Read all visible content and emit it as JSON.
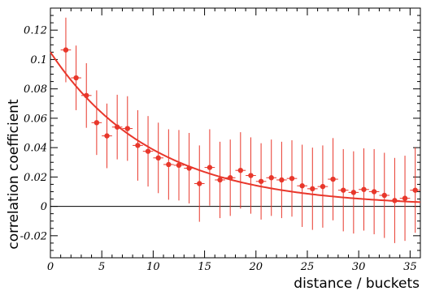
{
  "chart_data": {
    "type": "scatter",
    "xlabel": "distance / buckets",
    "ylabel": "correlation coefficient",
    "xlim": [
      0,
      36
    ],
    "ylim": [
      -0.035,
      0.135
    ],
    "x_ticks": [
      0,
      5,
      10,
      15,
      20,
      25,
      30,
      35
    ],
    "x_tick_labels": [
      "0",
      "5",
      "10",
      "15",
      "20",
      "25",
      "30",
      "35"
    ],
    "y_ticks": [
      -0.02,
      0,
      0.02,
      0.04,
      0.06,
      0.08,
      0.1,
      0.12
    ],
    "y_tick_labels": [
      "-0.02",
      "0",
      "0.02",
      "0.04",
      "0.06",
      "0.08",
      "0.1",
      "0.12"
    ],
    "grid": false,
    "reference_line_y": 0,
    "marker_color": "#e8372b",
    "series": [
      {
        "points": [
          {
            "x": 1.5,
            "y": 0.1065,
            "err": 0.022
          },
          {
            "x": 2.5,
            "y": 0.0875,
            "err": 0.022
          },
          {
            "x": 3.5,
            "y": 0.0755,
            "err": 0.022
          },
          {
            "x": 4.5,
            "y": 0.057,
            "err": 0.022
          },
          {
            "x": 5.5,
            "y": 0.048,
            "err": 0.022
          },
          {
            "x": 6.5,
            "y": 0.054,
            "err": 0.022
          },
          {
            "x": 7.5,
            "y": 0.053,
            "err": 0.022
          },
          {
            "x": 8.5,
            "y": 0.0415,
            "err": 0.024
          },
          {
            "x": 9.5,
            "y": 0.0375,
            "err": 0.024
          },
          {
            "x": 10.5,
            "y": 0.033,
            "err": 0.024
          },
          {
            "x": 11.5,
            "y": 0.0285,
            "err": 0.024
          },
          {
            "x": 12.5,
            "y": 0.028,
            "err": 0.024
          },
          {
            "x": 13.5,
            "y": 0.026,
            "err": 0.024
          },
          {
            "x": 14.5,
            "y": 0.0155,
            "err": 0.026
          },
          {
            "x": 15.5,
            "y": 0.0265,
            "err": 0.026
          },
          {
            "x": 16.5,
            "y": 0.018,
            "err": 0.026
          },
          {
            "x": 17.5,
            "y": 0.0195,
            "err": 0.026
          },
          {
            "x": 18.5,
            "y": 0.0245,
            "err": 0.026
          },
          {
            "x": 19.5,
            "y": 0.021,
            "err": 0.026
          },
          {
            "x": 20.5,
            "y": 0.017,
            "err": 0.026
          },
          {
            "x": 21.5,
            "y": 0.0195,
            "err": 0.026
          },
          {
            "x": 22.5,
            "y": 0.018,
            "err": 0.026
          },
          {
            "x": 23.5,
            "y": 0.019,
            "err": 0.026
          },
          {
            "x": 24.5,
            "y": 0.014,
            "err": 0.028
          },
          {
            "x": 25.5,
            "y": 0.012,
            "err": 0.028
          },
          {
            "x": 26.5,
            "y": 0.0135,
            "err": 0.028
          },
          {
            "x": 27.5,
            "y": 0.0185,
            "err": 0.028
          },
          {
            "x": 28.5,
            "y": 0.011,
            "err": 0.028
          },
          {
            "x": 29.5,
            "y": 0.0095,
            "err": 0.028
          },
          {
            "x": 30.5,
            "y": 0.0115,
            "err": 0.028
          },
          {
            "x": 31.5,
            "y": 0.01,
            "err": 0.029
          },
          {
            "x": 32.5,
            "y": 0.0075,
            "err": 0.029
          },
          {
            "x": 33.5,
            "y": 0.004,
            "err": 0.029
          },
          {
            "x": 34.5,
            "y": 0.0055,
            "err": 0.029
          },
          {
            "x": 35.5,
            "y": 0.011,
            "err": 0.029
          }
        ]
      }
    ],
    "fit_curve": {
      "model": "exponential",
      "amplitude": 0.105,
      "decay_length": 10,
      "x_range": [
        0,
        36
      ]
    }
  }
}
